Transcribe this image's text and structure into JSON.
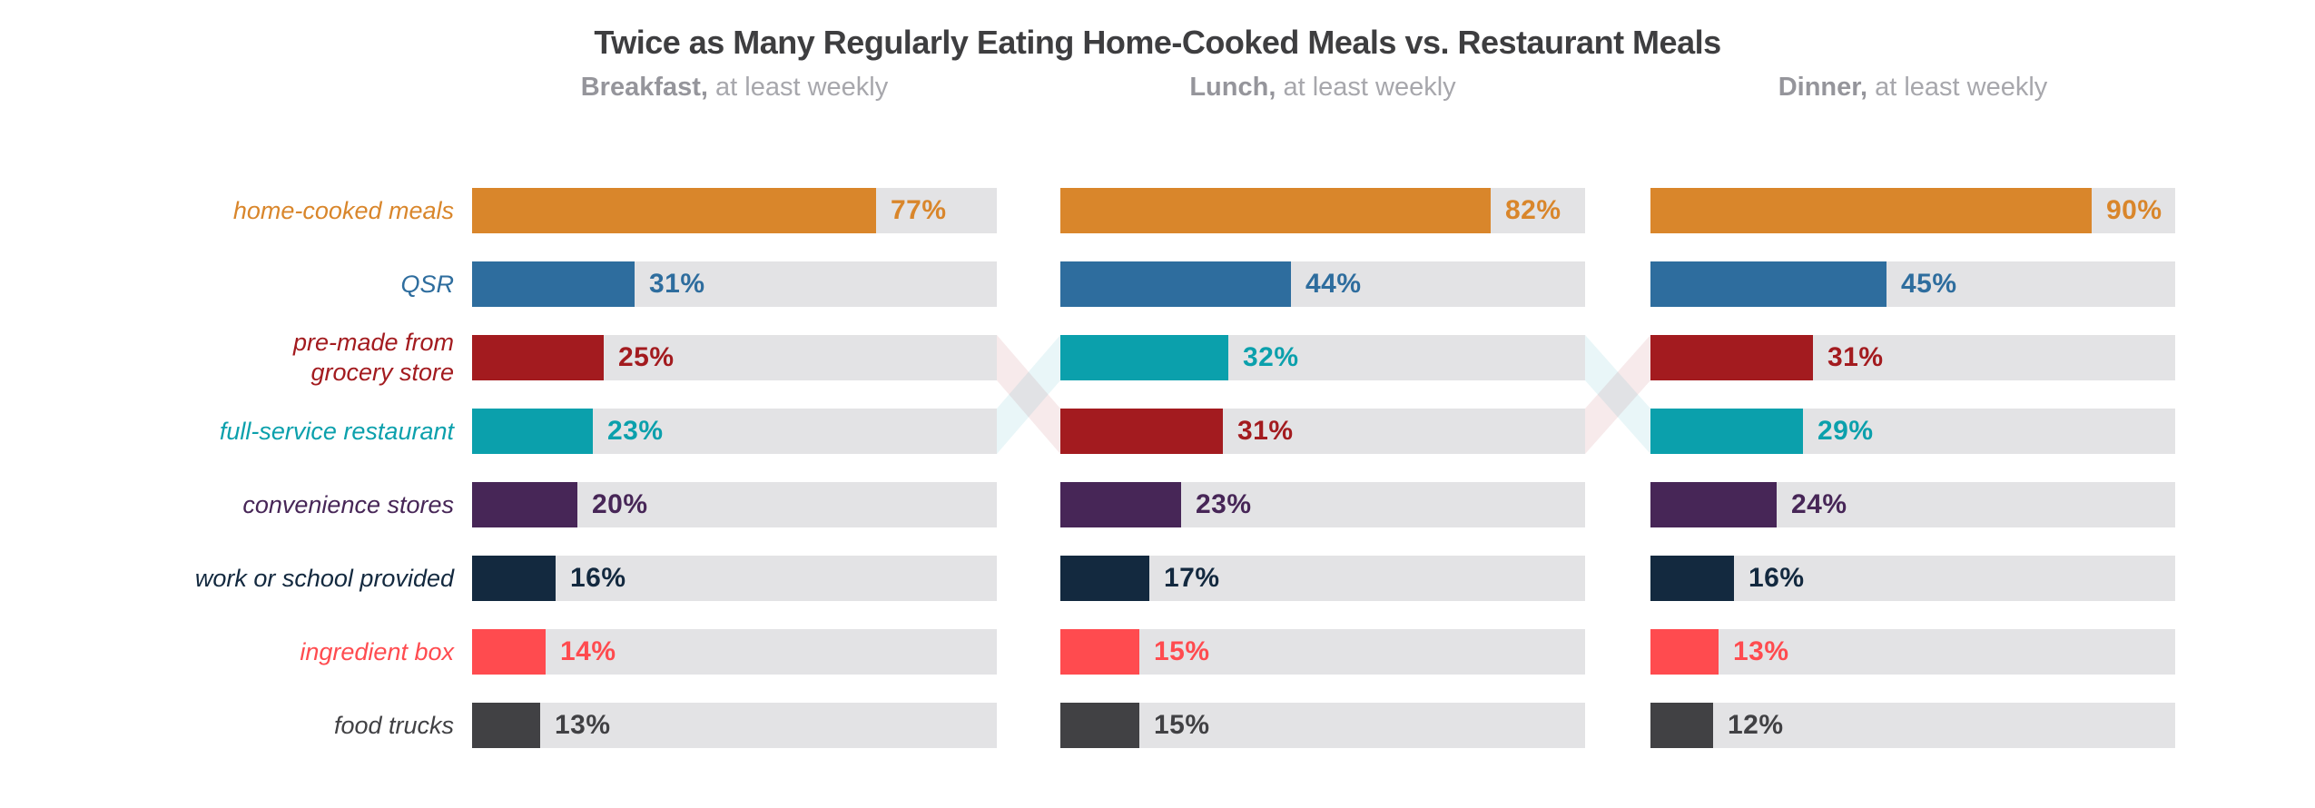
{
  "title": "Twice as Many Regularly Eating Home-Cooked Meals vs. Restaurant Meals",
  "columns": [
    {
      "label_bold": "Breakfast,",
      "label_rest": "at least weekly"
    },
    {
      "label_bold": "Lunch,",
      "label_rest": "at least weekly"
    },
    {
      "label_bold": "Dinner,",
      "label_rest": "at least weekly"
    }
  ],
  "chart_data": {
    "type": "bar",
    "orientation": "horizontal",
    "unit": "%",
    "xlim": [
      0,
      100
    ],
    "grid": false,
    "legend": "none",
    "title": "Twice as Many Regularly Eating Home-Cooked Meals vs. Restaurant Meals",
    "categories": [
      "home-cooked meals",
      "QSR",
      "pre-made from\ngrocery store",
      "full-service restaurant",
      "convenience stores",
      "work or school provided",
      "ingredient box",
      "food trucks"
    ],
    "colors": [
      "#d9862b",
      "#2e6d9e",
      "#a31b1f",
      "#0ba0ac",
      "#472657",
      "#13293f",
      "#ff4b4f",
      "#414144"
    ],
    "track_color": "#e3e3e5",
    "series": [
      {
        "name": "Breakfast, at least weekly",
        "values": [
          77,
          31,
          25,
          23,
          20,
          16,
          14,
          13
        ]
      },
      {
        "name": "Lunch, at least weekly",
        "values": [
          82,
          44,
          31,
          32,
          23,
          17,
          15,
          15
        ]
      },
      {
        "name": "Dinner, at least weekly",
        "values": [
          90,
          45,
          31,
          29,
          24,
          16,
          13,
          12
        ]
      }
    ],
    "row_order_by_column": [
      [
        0,
        1,
        2,
        3,
        4,
        5,
        6,
        7
      ],
      [
        0,
        1,
        3,
        2,
        4,
        5,
        6,
        7
      ],
      [
        0,
        1,
        2,
        3,
        4,
        5,
        6,
        7
      ]
    ],
    "crossover_ribbon_opacity": 0.09
  }
}
